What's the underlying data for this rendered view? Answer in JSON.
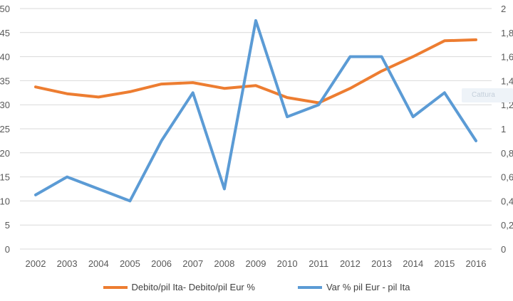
{
  "overlay": {
    "label": "Cattura"
  },
  "chart_data": {
    "type": "line",
    "title": "",
    "categories": [
      "2002",
      "2003",
      "2004",
      "2005",
      "2006",
      "2007",
      "2008",
      "2009",
      "2010",
      "2011",
      "2012",
      "2013",
      "2014",
      "2015",
      "2016"
    ],
    "series": [
      {
        "name": "Debito/pil Ita- Debito/pil Eur %",
        "axis": "left",
        "color": "#ED7D31",
        "values": [
          33.7,
          32.3,
          31.6,
          32.7,
          34.3,
          34.6,
          33.4,
          34.0,
          31.5,
          30.4,
          33.4,
          37.0,
          40.0,
          43.3,
          43.5
        ]
      },
      {
        "name": "Var % pil Eur - pil Ita",
        "axis": "right",
        "color": "#5B9BD5",
        "values": [
          0.45,
          0.6,
          0.5,
          0.4,
          0.9,
          1.3,
          0.5,
          1.9,
          1.1,
          1.2,
          1.6,
          1.6,
          1.1,
          1.3,
          0.9
        ]
      }
    ],
    "y_left": {
      "min": 0,
      "max": 50,
      "ticks": [
        "0",
        "5",
        "10",
        "15",
        "20",
        "25",
        "30",
        "35",
        "40",
        "45",
        "50"
      ]
    },
    "y_right": {
      "min": 0,
      "max": 2,
      "ticks": [
        "0",
        "0,2",
        "0,4",
        "0,6",
        "0,8",
        "1",
        "1,2",
        "1,4",
        "1,6",
        "1,8",
        "2"
      ]
    },
    "grid": "horizontal",
    "legend": "bottom"
  }
}
